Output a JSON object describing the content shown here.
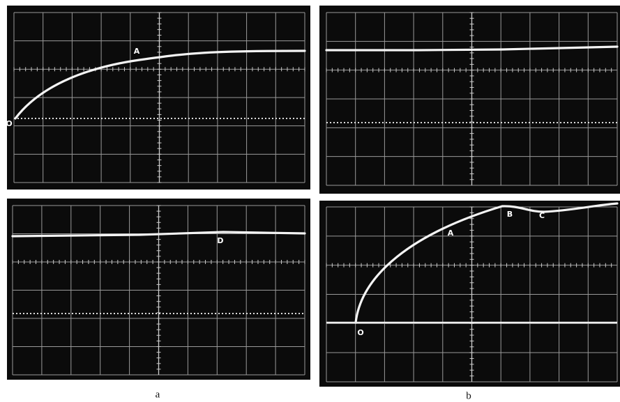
{
  "figure_a": {
    "top": {
      "labels": [
        "O",
        "A"
      ]
    },
    "bottom": {
      "labels": [
        "D"
      ]
    },
    "caption": "a"
  },
  "figure_b": {
    "bottom": {
      "labels": [
        "O",
        "A",
        "B",
        "C"
      ]
    },
    "caption": "b"
  }
}
